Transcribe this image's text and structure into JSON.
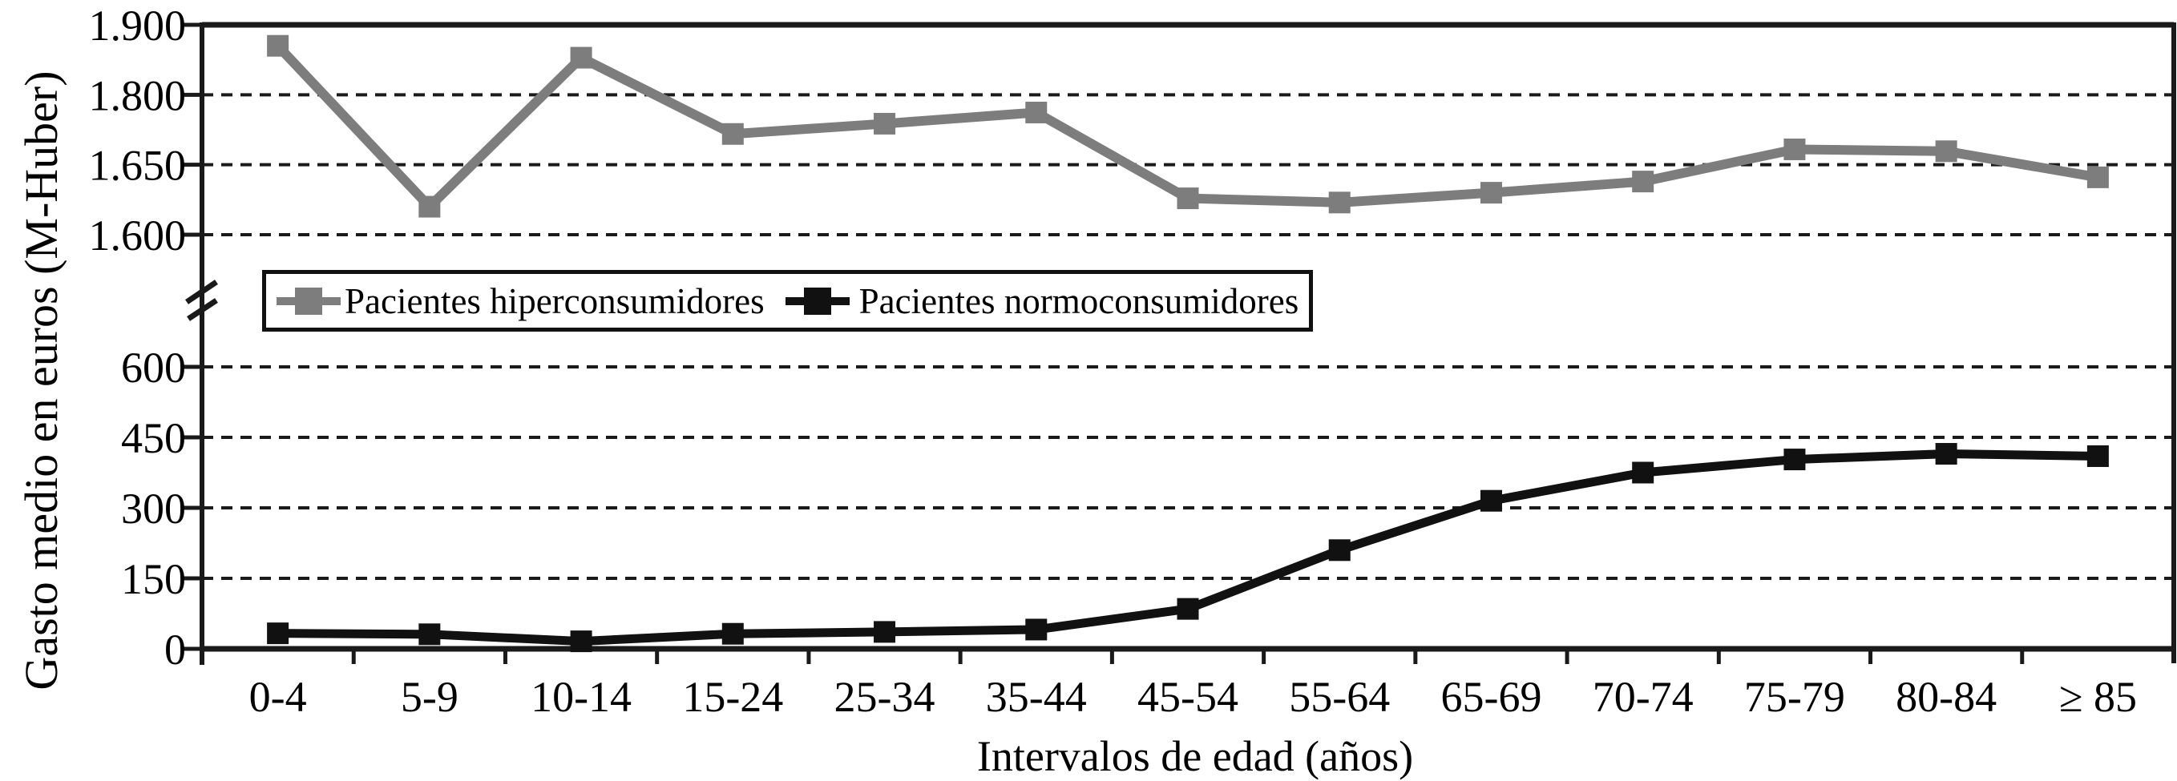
{
  "figure": {
    "background": "#ffffff",
    "text_color": "#000000",
    "grid_color": "#1a1a1a"
  },
  "chart_data": {
    "type": "line",
    "title": "",
    "xlabel": "Intervalos de edad (años)",
    "ylabel": "Gasto medio en euros (M-Huber)",
    "categories": [
      "0-4",
      "5-9",
      "10-14",
      "15-24",
      "25-34",
      "35-44",
      "45-54",
      "55-64",
      "65-69",
      "70-74",
      "75-79",
      "80-84",
      "≥ 85"
    ],
    "grid": "horizontal-dashed",
    "axis_break": true,
    "legend_position": "inside-upper-left",
    "panels": [
      {
        "name": "upper",
        "tick_values": [
          1600,
          1650,
          1800,
          1900
        ],
        "tick_labels": [
          "1.600",
          "1.650",
          "1.800",
          "1.900"
        ]
      },
      {
        "name": "lower",
        "tick_values": [
          0,
          150,
          300,
          450,
          600
        ],
        "tick_labels": [
          "0",
          "150",
          "300",
          "450",
          "600"
        ]
      }
    ],
    "series": [
      {
        "name": "Pacientes hiperconsumidores",
        "color": "#7d7d7d",
        "marker": "square",
        "panel": "upper",
        "values": [
          1870,
          1620,
          1853,
          1716,
          1738,
          1762,
          1626,
          1623,
          1630,
          1638,
          1683,
          1679,
          1641
        ]
      },
      {
        "name": "Pacientes normoconsumidores",
        "color": "#111111",
        "marker": "square",
        "panel": "lower",
        "values": [
          33,
          31,
          16,
          32,
          36,
          41,
          85,
          210,
          315,
          375,
          403,
          415,
          410
        ]
      }
    ]
  }
}
